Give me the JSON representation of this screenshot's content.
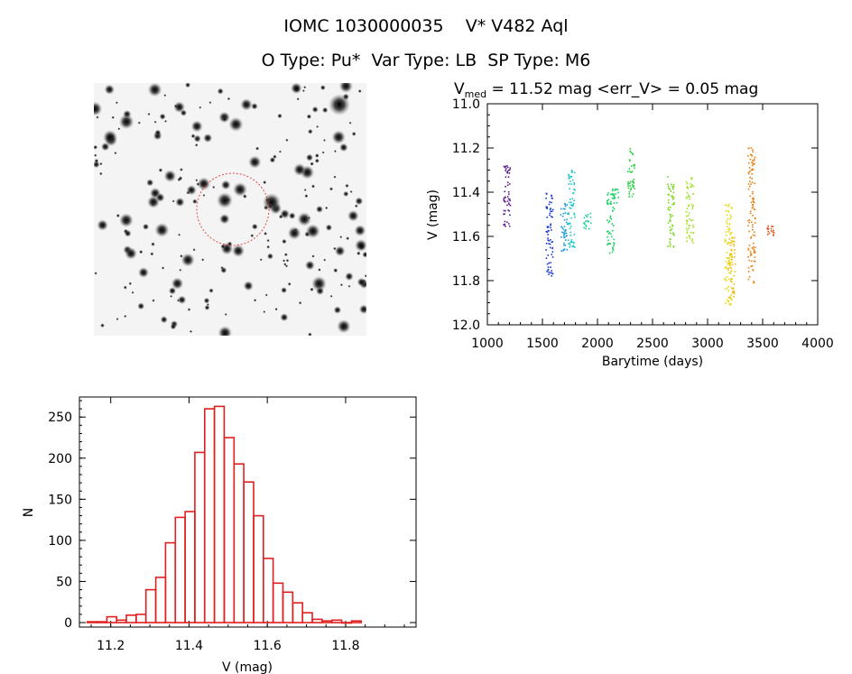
{
  "header": {
    "title_line1": "IOMC 1030000035    V* V482 Aql",
    "title_line2": "O Type: Pu*  Var Type: LB  SP Type: M6"
  },
  "chart_data": [
    {
      "type": "scatter",
      "title_prefix": "V",
      "title_sub": "med",
      "title_rest": " = 11.52 mag <err_V> = 0.05 mag",
      "xlabel": "Barytime (days)",
      "ylabel": "V (mag)",
      "xlim": [
        1000,
        4000
      ],
      "ylim": [
        12.0,
        11.0
      ],
      "y_inverted": true,
      "xticks": [
        "1000",
        "1500",
        "2000",
        "2500",
        "3000",
        "3500",
        "4000"
      ],
      "yticks": [
        "11.0",
        "11.2",
        "11.4",
        "11.6",
        "11.8",
        "12.0"
      ],
      "season_clusters": [
        {
          "x": 1180,
          "ymin": 11.28,
          "ymax": 11.58,
          "color": "#5a1a8c"
        },
        {
          "x": 1565,
          "ymin": 11.4,
          "ymax": 11.78,
          "color": "#1a3ad8"
        },
        {
          "x": 1700,
          "ymin": 11.45,
          "ymax": 11.68,
          "color": "#1a9ad8"
        },
        {
          "x": 1765,
          "ymin": 11.3,
          "ymax": 11.66,
          "color": "#1ac8c8"
        },
        {
          "x": 1910,
          "ymin": 11.49,
          "ymax": 11.57,
          "color": "#1ad0a0"
        },
        {
          "x": 2120,
          "ymin": 11.4,
          "ymax": 11.68,
          "color": "#1ad060"
        },
        {
          "x": 2160,
          "ymin": 11.38,
          "ymax": 11.45,
          "color": "#1ad060"
        },
        {
          "x": 2310,
          "ymin": 11.2,
          "ymax": 11.42,
          "color": "#2ad040"
        },
        {
          "x": 2670,
          "ymin": 11.33,
          "ymax": 11.65,
          "color": "#7ad820"
        },
        {
          "x": 2840,
          "ymin": 11.32,
          "ymax": 11.64,
          "color": "#a0e020"
        },
        {
          "x": 3190,
          "ymin": 11.45,
          "ymax": 11.92,
          "color": "#e8d810"
        },
        {
          "x": 3220,
          "ymin": 11.6,
          "ymax": 11.88,
          "color": "#f0c010"
        },
        {
          "x": 3400,
          "ymin": 11.2,
          "ymax": 11.82,
          "color": "#e88010"
        },
        {
          "x": 3570,
          "ymin": 11.55,
          "ymax": 11.6,
          "color": "#d85018"
        }
      ]
    },
    {
      "type": "bar",
      "title": "",
      "xlabel": "V (mag)",
      "ylabel": "N",
      "xlim": [
        11.12,
        11.98
      ],
      "ylim": [
        0,
        270
      ],
      "xticks": [
        "11.2",
        "11.4",
        "11.6",
        "11.8"
      ],
      "yticks": [
        "0",
        "50",
        "100",
        "150",
        "200",
        "250"
      ],
      "bin_width": 0.025,
      "bin_start": 11.14,
      "values": [
        1,
        1,
        7,
        3,
        9,
        10,
        40,
        55,
        97,
        128,
        135,
        207,
        260,
        263,
        225,
        193,
        171,
        130,
        78,
        48,
        37,
        24,
        12,
        4,
        2,
        3,
        0,
        2
      ],
      "bar_color": "#e02020"
    }
  ]
}
